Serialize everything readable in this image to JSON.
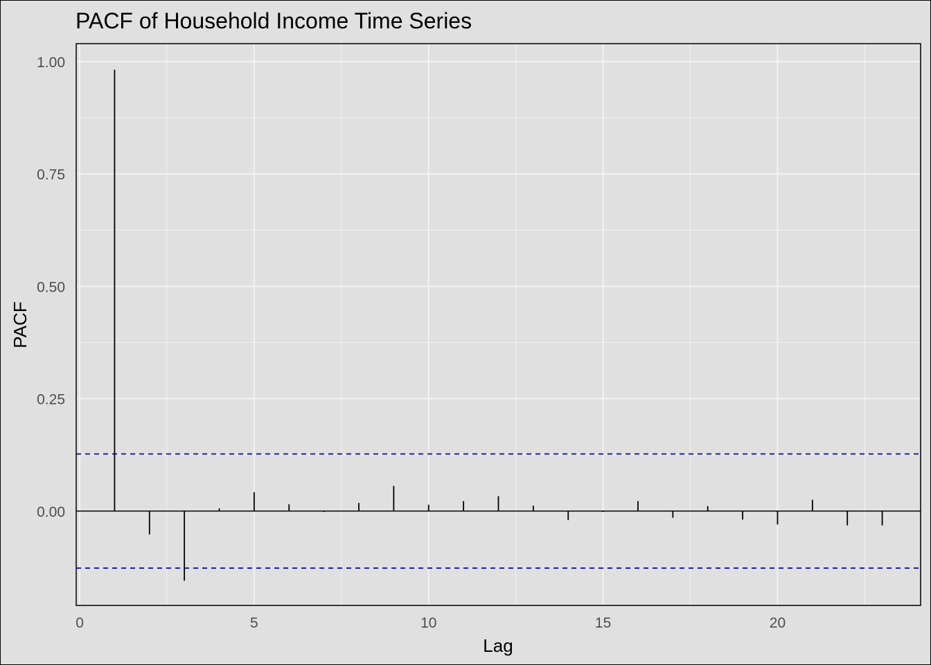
{
  "chart_data": {
    "type": "bar",
    "title": "PACF of Household Income Time Series",
    "xlabel": "Lag",
    "ylabel": "PACF",
    "xlim": [
      -0.1,
      24.1
    ],
    "ylim": [
      -0.21,
      1.04
    ],
    "x_ticks": [
      0,
      5,
      10,
      15,
      20
    ],
    "x_tick_labels": [
      "0",
      "5",
      "10",
      "15",
      "20"
    ],
    "y_ticks": [
      0,
      0.25,
      0.5,
      0.75,
      1.0
    ],
    "y_tick_labels": [
      "0.00",
      "0.25",
      "0.50",
      "0.75",
      "1.00"
    ],
    "lags": [
      1,
      2,
      3,
      4,
      5,
      6,
      7,
      8,
      9,
      10,
      11,
      12,
      13,
      14,
      15,
      16,
      17,
      18,
      19,
      20,
      21,
      22,
      23
    ],
    "values": [
      0.982,
      -0.052,
      -0.155,
      0.006,
      0.042,
      0.015,
      -0.002,
      0.018,
      0.056,
      0.014,
      0.022,
      0.033,
      0.012,
      -0.02,
      -0.002,
      0.022,
      -0.015,
      0.011,
      -0.019,
      -0.03,
      0.025,
      -0.032,
      -0.032
    ],
    "confidence_bounds": [
      0.127,
      -0.127
    ],
    "grid": true,
    "colors": {
      "panel_background": "#e0e0e0",
      "gridline": "#f2f2f2",
      "spike": "#000000",
      "confidence_line": "#0000cc",
      "tick_text": "#4d4d4d"
    }
  }
}
